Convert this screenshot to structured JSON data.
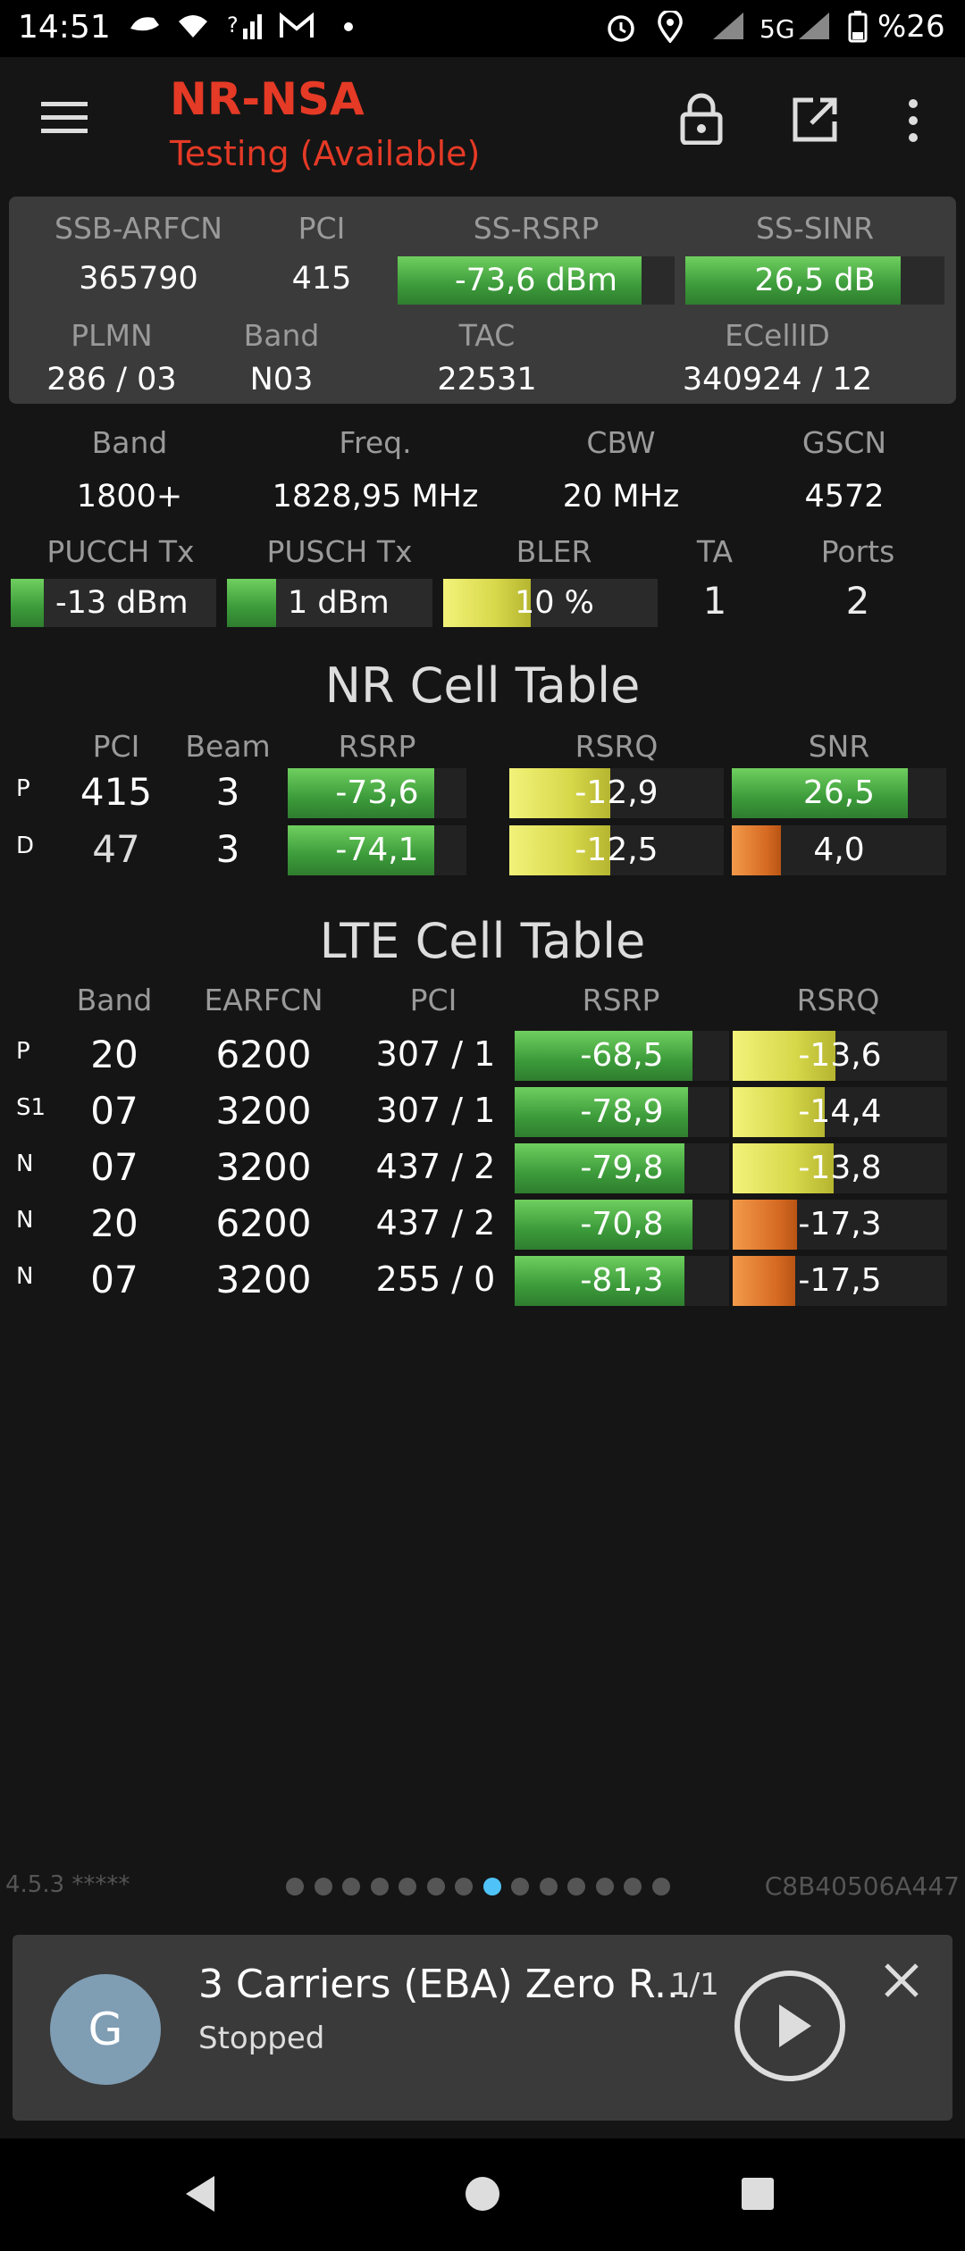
{
  "status_bar": {
    "time": "14:51",
    "network": "5G",
    "battery": "%26"
  },
  "app": {
    "title": "NR-NSA",
    "subtitle": "Testing (Available)"
  },
  "nr_summary": {
    "headers": [
      "SSB-ARFCN",
      "PCI",
      "SS-RSRP",
      "SS-SINR"
    ],
    "ssb_arfcn": "365790",
    "pci": "415",
    "ss_rsrp": {
      "text": "-73,6 dBm",
      "level": 0.88
    },
    "ss_sinr": {
      "text": "26,5 dB",
      "level": 0.83
    },
    "headers2": [
      "PLMN",
      "Band",
      "TAC",
      "ECellID"
    ],
    "plmn": "286 / 03",
    "band": "N03",
    "tac": "22531",
    "ecellid": "340924 / 12"
  },
  "lte_summary": {
    "headers": [
      "Band",
      "Freq.",
      "CBW",
      "GSCN"
    ],
    "band": "1800+",
    "freq": "1828,95 MHz",
    "cbw": "20 MHz",
    "gscn": "4572",
    "headers2": [
      "PUCCH Tx",
      "PUSCH Tx",
      "BLER",
      "TA",
      "Ports"
    ],
    "pucch_tx": {
      "text": "-13 dBm",
      "level": 0.16
    },
    "pusch_tx": {
      "text": "1 dBm",
      "level": 0.24
    },
    "bler": {
      "text": "10 %",
      "level": 0.41
    },
    "ta": "1",
    "ports": "2"
  },
  "nr_cell_table": {
    "title": "NR Cell Table",
    "headers": [
      "PCI",
      "Beam",
      "RSRP",
      "RSRQ",
      "SNR"
    ],
    "rows": [
      {
        "type": "P",
        "pci": "415",
        "beam": "3",
        "rsrp": "-73,6",
        "rsrp_level": 0.82,
        "rsrq": "-12,9",
        "rsrq_level": 0.47,
        "snr": "26,5",
        "snr_level": 0.82,
        "snr_color": "green"
      },
      {
        "type": "D",
        "pci": "47",
        "beam": "3",
        "rsrp": "-74,1",
        "rsrp_level": 0.82,
        "rsrq": "-12,5",
        "rsrq_level": 0.47,
        "snr": "4,0",
        "snr_level": 0.23,
        "snr_color": "orange"
      }
    ]
  },
  "lte_cell_table": {
    "title": "LTE Cell Table",
    "headers": [
      "Band",
      "EARFCN",
      "PCI",
      "RSRP",
      "RSRQ"
    ],
    "rows": [
      {
        "type": "P",
        "band": "20",
        "earfcn": "6200",
        "pci": "307 / 1",
        "rsrp": "-68,5",
        "rsrp_level": 0.83,
        "rsrq": "-13,6",
        "rsrq_level": 0.48,
        "rsrq_color": "yellow"
      },
      {
        "type": "S1",
        "band": "07",
        "earfcn": "3200",
        "pci": "307 / 1",
        "rsrp": "-78,9",
        "rsrp_level": 0.81,
        "rsrq": "-14,4",
        "rsrq_level": 0.43,
        "rsrq_color": "yellow"
      },
      {
        "type": "N",
        "band": "07",
        "earfcn": "3200",
        "pci": "437 / 2",
        "rsrp": "-79,8",
        "rsrp_level": 0.79,
        "rsrq": "-13,8",
        "rsrq_level": 0.47,
        "rsrq_color": "yellow"
      },
      {
        "type": "N",
        "band": "20",
        "earfcn": "6200",
        "pci": "437 / 2",
        "rsrp": "-70,8",
        "rsrp_level": 0.83,
        "rsrq": "-17,3",
        "rsrq_level": 0.3,
        "rsrq_color": "orange"
      },
      {
        "type": "N",
        "band": "07",
        "earfcn": "3200",
        "pci": "255 / 0",
        "rsrp": "-81,3",
        "rsrp_level": 0.79,
        "rsrq": "-17,5",
        "rsrq_level": 0.29,
        "rsrq_color": "orange"
      }
    ]
  },
  "footer": {
    "version": "4.5.3 *****",
    "device_id": "C8B40506A447",
    "page_count": 14,
    "active_page": 7
  },
  "player": {
    "avatar_letter": "G",
    "title": "3 Carriers (EBA) Zero R...",
    "count": "1/1",
    "status": "Stopped"
  },
  "icons": {
    "menu": "menu-icon",
    "lock": "lock-icon",
    "share": "open-external-icon",
    "more": "more-vert-icon"
  }
}
